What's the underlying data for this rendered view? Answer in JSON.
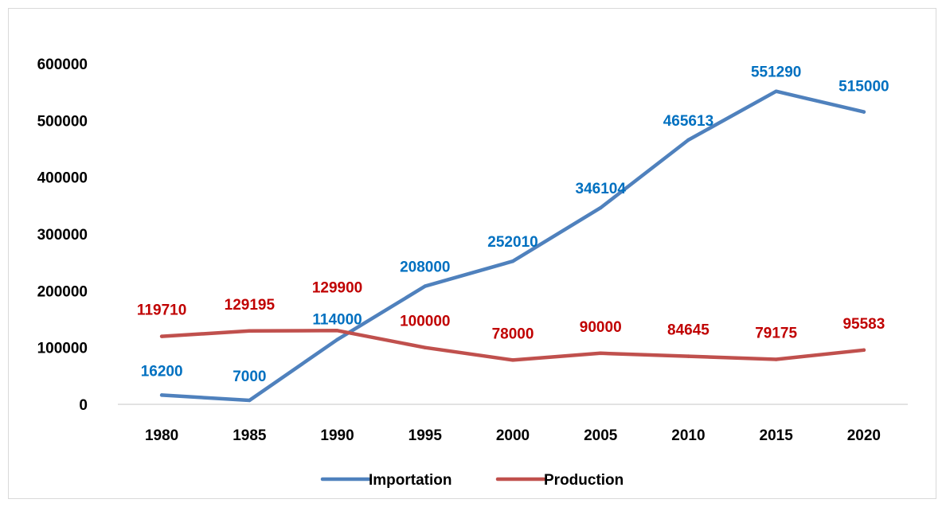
{
  "chart_data": {
    "type": "line",
    "title": "",
    "xlabel": "",
    "ylabel": "",
    "categories": [
      "1980",
      "1985",
      "1990",
      "1995",
      "2000",
      "2005",
      "2010",
      "2015",
      "2020"
    ],
    "ylim": [
      0,
      600000
    ],
    "yticks": [
      "0",
      "100000",
      "200000",
      "300000",
      "400000",
      "500000",
      "600000"
    ],
    "grid": false,
    "legend_position": "bottom",
    "series": [
      {
        "name": "Importation",
        "color": "#4f81bd",
        "label_color": "#0070c0",
        "values": [
          16200,
          7000,
          114000,
          208000,
          252010,
          346104,
          465613,
          551290,
          515000
        ],
        "labels": [
          "16200",
          "7000",
          "114000",
          "208000",
          "252010",
          "346104",
          "465613",
          "551290",
          "515000"
        ]
      },
      {
        "name": "Production",
        "color": "#c0504d",
        "label_color": "#c00000",
        "values": [
          119710,
          129195,
          129900,
          100000,
          78000,
          90000,
          84645,
          79175,
          95583
        ],
        "labels": [
          "119710",
          "129195",
          "129900",
          "100000",
          "78000",
          "90000",
          "84645",
          "79175",
          "95583"
        ]
      }
    ]
  }
}
